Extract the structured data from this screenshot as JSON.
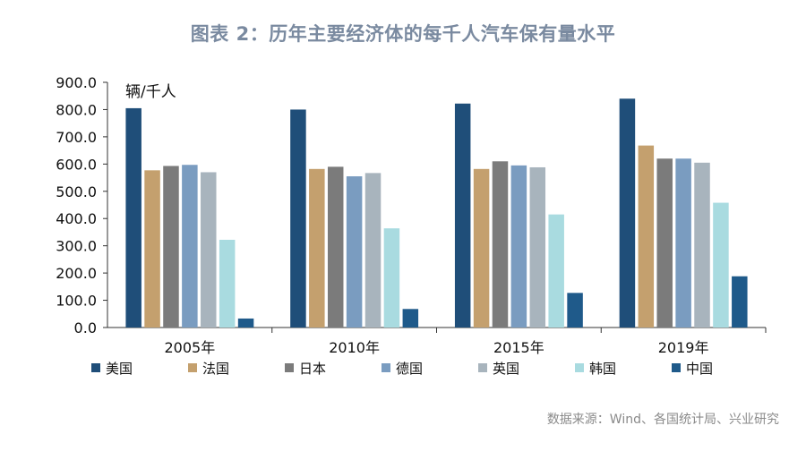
{
  "title": "图表 2：历年主要经济体的每千人汽车保有量水平",
  "source": "数据来源：Wind、各国统计局、兴业研究",
  "chart_data": {
    "type": "bar",
    "title": "图表 2：历年主要经济体的每千人汽车保有量水平",
    "ylabel": "辆/千人",
    "xlabel": "",
    "ylim": [
      0,
      900
    ],
    "yticks": [
      "0.0",
      "100.0",
      "200.0",
      "300.0",
      "400.0",
      "500.0",
      "600.0",
      "700.0",
      "800.0",
      "900.0"
    ],
    "categories": [
      "2005年",
      "2010年",
      "2015年",
      "2019年"
    ],
    "legend_position": "bottom",
    "grid": false,
    "series": [
      {
        "name": "美国",
        "color": "#1f4e79",
        "values": [
          805,
          800,
          822,
          840
        ]
      },
      {
        "name": "法国",
        "color": "#c4a06e",
        "values": [
          577,
          582,
          582,
          668
        ]
      },
      {
        "name": "日本",
        "color": "#7b7b7b",
        "values": [
          593,
          590,
          610,
          620
        ]
      },
      {
        "name": "德国",
        "color": "#7a9cc0",
        "values": [
          597,
          555,
          595,
          620
        ]
      },
      {
        "name": "英国",
        "color": "#a8b4bd",
        "values": [
          570,
          567,
          588,
          605
        ]
      },
      {
        "name": "韩国",
        "color": "#a9dbe0",
        "values": [
          322,
          364,
          415,
          458
        ]
      },
      {
        "name": "中国",
        "color": "#1f5a8a",
        "values": [
          33,
          68,
          127,
          188
        ]
      }
    ]
  }
}
